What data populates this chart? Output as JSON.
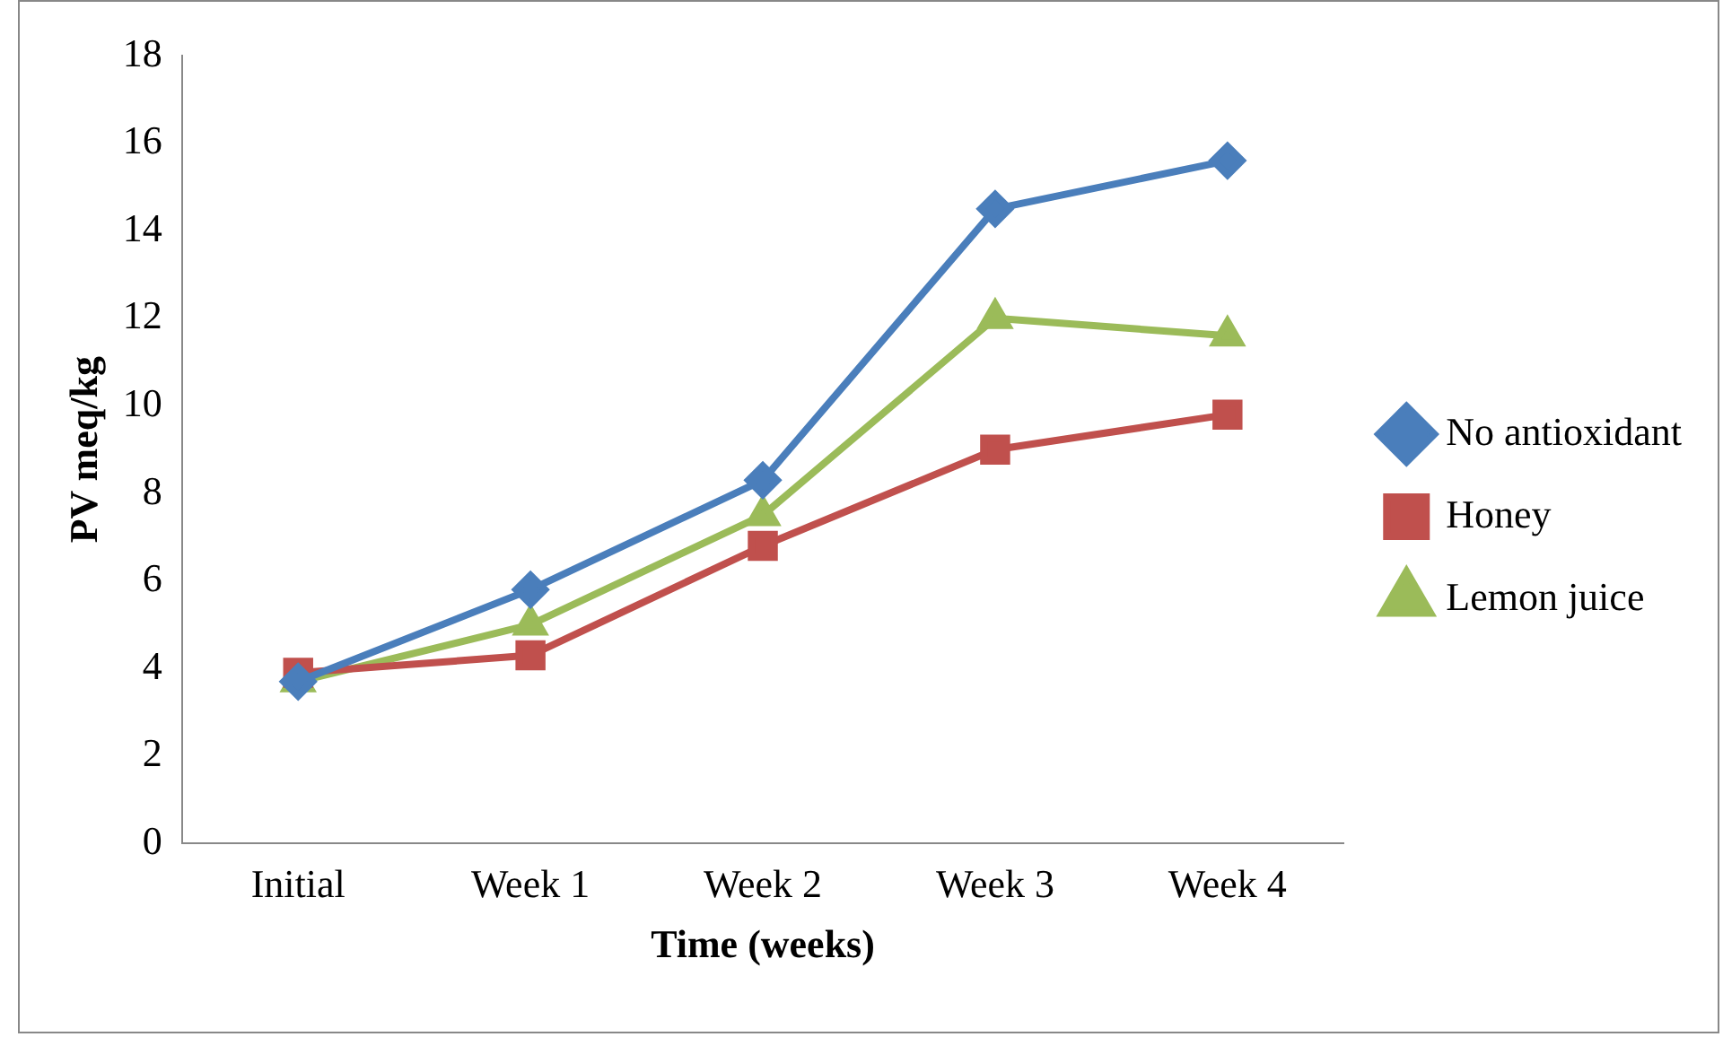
{
  "chart_data": {
    "type": "line",
    "xlabel": "Time (weeks)",
    "ylabel": "PV meq/kg",
    "categories": [
      "Initial",
      "Week 1",
      "Week 2",
      "Week 3",
      "Week 4"
    ],
    "series": [
      {
        "name": "No antioxidant",
        "color": "#4a7ebb",
        "marker": "diamond",
        "values": [
          3.7,
          5.8,
          8.3,
          14.5,
          15.6
        ]
      },
      {
        "name": "Honey",
        "color": "#c0504d",
        "marker": "square",
        "values": [
          3.9,
          4.3,
          6.8,
          9.0,
          9.8
        ]
      },
      {
        "name": "Lemon juice",
        "color": "#9bbb59",
        "marker": "triangle",
        "values": [
          3.7,
          5.0,
          7.5,
          12.0,
          11.6
        ]
      }
    ],
    "ylim": [
      0,
      18
    ],
    "yticks": [
      0,
      2,
      4,
      6,
      8,
      10,
      12,
      14,
      16,
      18
    ],
    "grid": false,
    "legend": "right",
    "line_style": "solid"
  }
}
